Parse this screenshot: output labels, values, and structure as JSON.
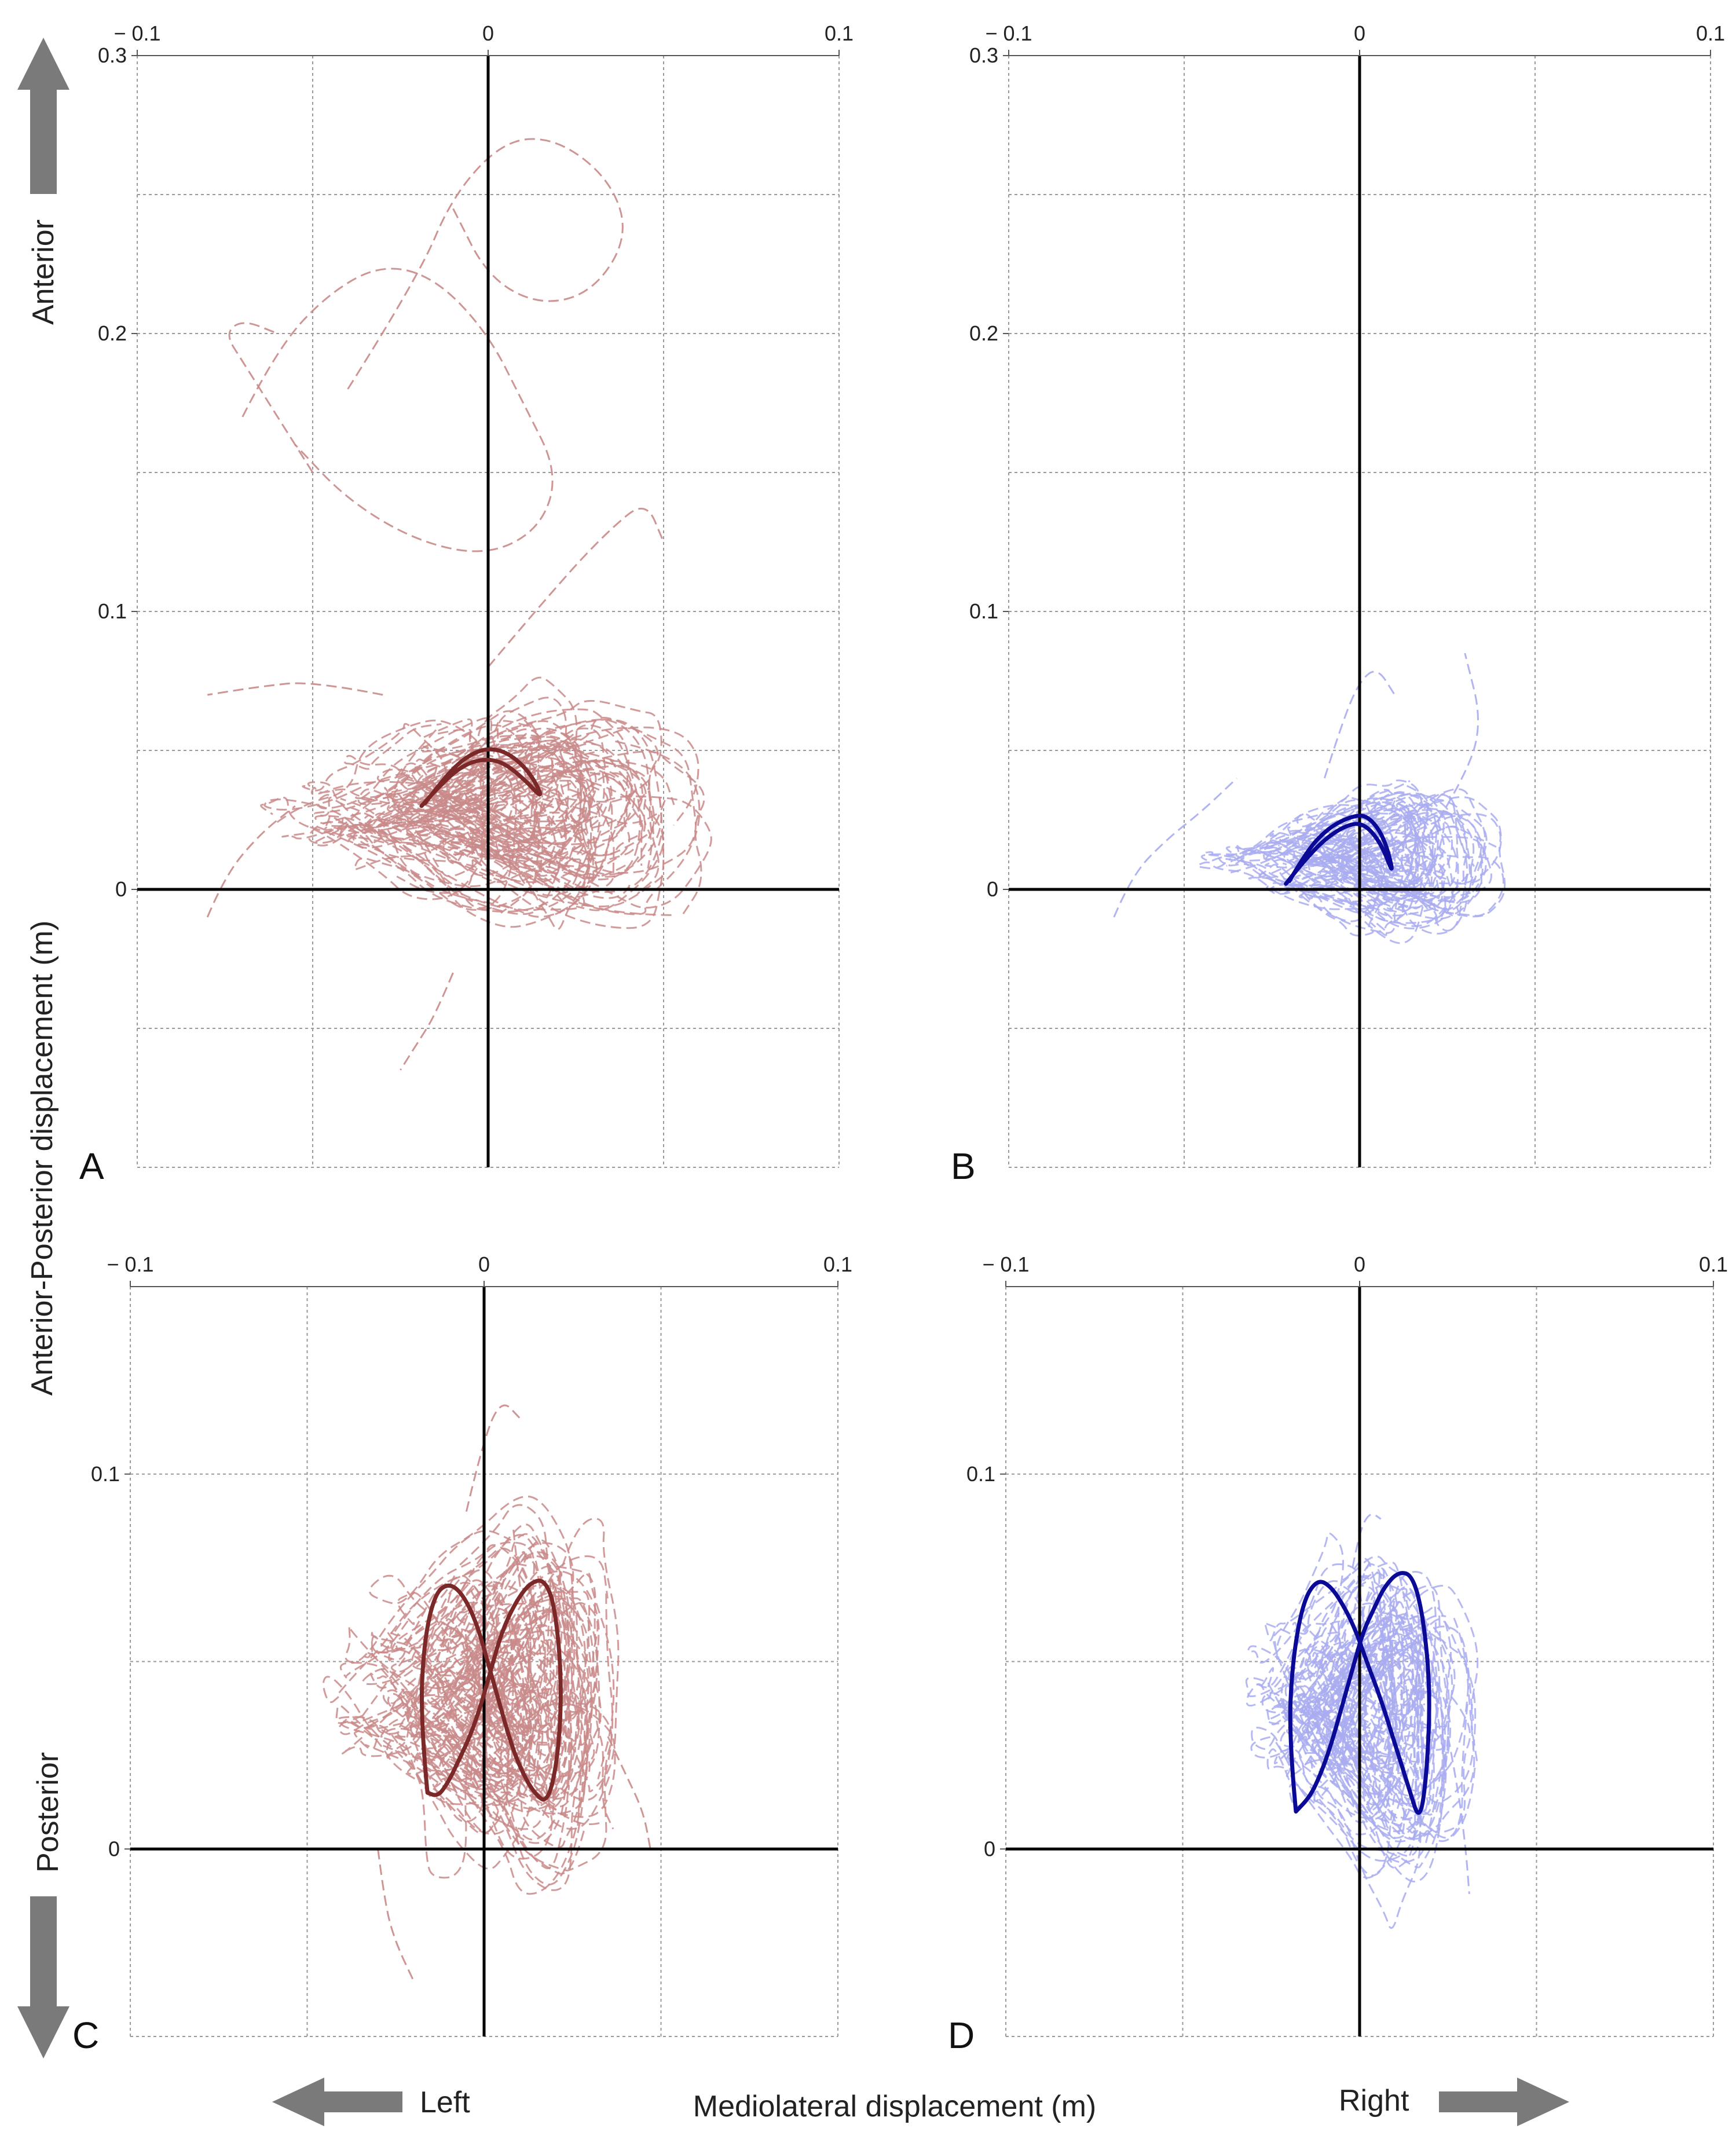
{
  "figure": {
    "ylabel": "Anterior-Posterior displacement (m)",
    "xlabel": "Mediolateral displacement (m)",
    "dir_anterior": "Anterior",
    "dir_posterior": "Posterior",
    "dir_left": "Left",
    "dir_right": "Right",
    "colors": {
      "red_trials": "#c98a8a",
      "red_mean": "#7a2828",
      "blue_trials": "#a9acf0",
      "blue_mean": "#0a0a96"
    }
  },
  "chart_data": [
    {
      "panel": "A",
      "type": "line",
      "theme": "red",
      "xlim": [
        -0.1,
        0.1
      ],
      "ylim": [
        -0.1,
        0.3
      ],
      "xticks": [
        -0.1,
        0,
        0.1
      ],
      "xtick_labels": [
        "− 0.1",
        "0",
        "0.1"
      ],
      "yticks": [
        0,
        0.1,
        0.2,
        0.3
      ],
      "ytick_labels": [
        "0",
        "0.1",
        "0.2",
        "0.3"
      ],
      "xgrid": [
        -0.1,
        -0.05,
        0,
        0.05,
        0.1
      ],
      "ygrid": [
        -0.1,
        -0.05,
        0,
        0.05,
        0.1,
        0.15,
        0.2,
        0.25,
        0.3
      ],
      "trials": {
        "count": 70,
        "x_spread": 0.045,
        "y_mean": 0.028,
        "y_spread": 0.03
      },
      "outlier_paths": [
        {
          "name": "loop-1",
          "x": [
            -0.07,
            -0.06,
            -0.045,
            -0.03,
            -0.015,
            0.0,
            0.01,
            0.02,
            0.015,
            0.0,
            -0.02,
            -0.04,
            -0.055
          ],
          "y": [
            0.17,
            0.195,
            0.215,
            0.225,
            0.22,
            0.2,
            0.175,
            0.15,
            0.13,
            0.12,
            0.125,
            0.14,
            0.16
          ]
        },
        {
          "name": "loop-2",
          "x": [
            -0.04,
            -0.02,
            -0.01,
            0.005,
            0.02,
            0.035,
            0.04,
            0.03,
            0.015,
            0.0,
            -0.01
          ],
          "y": [
            0.18,
            0.22,
            0.25,
            0.27,
            0.27,
            0.255,
            0.235,
            0.215,
            0.21,
            0.22,
            0.245
          ]
        },
        {
          "name": "loop-3",
          "x": [
            -0.05,
            -0.06,
            -0.07,
            -0.075,
            -0.07,
            -0.06
          ],
          "y": [
            0.15,
            0.17,
            0.19,
            0.2,
            0.205,
            0.2
          ]
        },
        {
          "name": "tail-left",
          "x": [
            -0.03,
            -0.05,
            -0.065,
            -0.08
          ],
          "y": [
            0.07,
            0.075,
            0.073,
            0.07
          ]
        },
        {
          "name": "tail-low",
          "x": [
            -0.08,
            -0.075,
            -0.065,
            -0.055
          ],
          "y": [
            -0.01,
            0.005,
            0.02,
            0.03
          ]
        },
        {
          "name": "tail-down",
          "x": [
            -0.01,
            -0.015,
            -0.02,
            -0.025
          ],
          "y": [
            -0.03,
            -0.045,
            -0.055,
            -0.065
          ]
        },
        {
          "name": "tail-mid",
          "x": [
            0.0,
            0.02,
            0.035,
            0.045,
            0.05
          ],
          "y": [
            0.08,
            0.11,
            0.13,
            0.14,
            0.125
          ]
        }
      ],
      "mean_path": {
        "x": [
          -0.018,
          -0.012,
          -0.006,
          0.0,
          0.006,
          0.012,
          0.016,
          0.01,
          0.004,
          -0.002,
          -0.008,
          -0.014,
          -0.019
        ],
        "y": [
          0.031,
          0.041,
          0.048,
          0.051,
          0.049,
          0.042,
          0.032,
          0.04,
          0.046,
          0.047,
          0.044,
          0.037,
          0.03
        ]
      }
    },
    {
      "panel": "B",
      "type": "line",
      "theme": "blue",
      "xlim": [
        -0.1,
        0.1
      ],
      "ylim": [
        -0.1,
        0.3
      ],
      "xticks": [
        -0.1,
        0,
        0.1
      ],
      "xtick_labels": [
        "− 0.1",
        "0",
        "0.1"
      ],
      "yticks": [
        0,
        0.1,
        0.2,
        0.3
      ],
      "ytick_labels": [
        "0",
        "0.1",
        "0.2",
        "0.3"
      ],
      "xgrid": [
        -0.1,
        -0.05,
        0,
        0.05,
        0.1
      ],
      "ygrid": [
        -0.1,
        -0.05,
        0,
        0.05,
        0.1,
        0.15,
        0.2,
        0.25,
        0.3
      ],
      "trials": {
        "count": 60,
        "x_spread": 0.03,
        "y_mean": 0.012,
        "y_spread": 0.022
      },
      "outlier_paths": [
        {
          "name": "tail-left",
          "x": [
            -0.07,
            -0.065,
            -0.055,
            -0.045,
            -0.035
          ],
          "y": [
            -0.01,
            0.005,
            0.018,
            0.028,
            0.04
          ]
        },
        {
          "name": "tail-up",
          "x": [
            -0.01,
            -0.005,
            0.0,
            0.005,
            0.01
          ],
          "y": [
            0.04,
            0.06,
            0.075,
            0.08,
            0.07
          ]
        },
        {
          "name": "tail-right",
          "x": [
            0.02,
            0.03,
            0.035,
            0.03
          ],
          "y": [
            0.02,
            0.04,
            0.06,
            0.085
          ]
        }
      ],
      "mean_path": {
        "x": [
          -0.02,
          -0.015,
          -0.009,
          -0.003,
          0.002,
          0.007,
          0.01,
          0.006,
          0.001,
          -0.004,
          -0.01,
          -0.016,
          -0.021
        ],
        "y": [
          0.003,
          0.014,
          0.022,
          0.026,
          0.027,
          0.019,
          0.004,
          0.017,
          0.024,
          0.023,
          0.018,
          0.01,
          0.002
        ]
      }
    },
    {
      "panel": "C",
      "type": "line",
      "theme": "red",
      "xlim": [
        -0.1,
        0.1
      ],
      "ylim": [
        -0.05,
        0.15
      ],
      "xticks": [
        -0.1,
        0,
        0.1
      ],
      "xtick_labels": [
        "− 0.1",
        "0",
        "0.1"
      ],
      "yticks": [
        0,
        0.1
      ],
      "ytick_labels": [
        "0",
        "0.1"
      ],
      "xgrid": [
        -0.1,
        -0.05,
        0,
        0.05,
        0.1
      ],
      "ygrid": [
        -0.05,
        0,
        0.05,
        0.1,
        0.15
      ],
      "trials": {
        "count": 80,
        "x_spread": 0.03,
        "y_mean": 0.04,
        "y_spread": 0.035
      },
      "outlier_paths": [
        {
          "name": "tail-low-left",
          "x": [
            -0.03,
            -0.028,
            -0.025,
            -0.02
          ],
          "y": [
            0.0,
            -0.015,
            -0.025,
            -0.035
          ]
        },
        {
          "name": "tail-top",
          "x": [
            -0.005,
            0.0,
            0.005,
            0.01
          ],
          "y": [
            0.09,
            0.11,
            0.12,
            0.115
          ]
        },
        {
          "name": "tail-right",
          "x": [
            0.035,
            0.04,
            0.045,
            0.047
          ],
          "y": [
            0.03,
            0.02,
            0.01,
            0.0
          ]
        }
      ],
      "mean_path": {
        "x": [
          -0.016,
          -0.018,
          -0.017,
          -0.014,
          -0.01,
          -0.006,
          -0.002,
          0.001,
          0.004,
          0.007,
          0.01,
          0.014,
          0.018,
          0.021,
          0.022,
          0.02,
          0.017,
          0.013,
          0.009,
          0.005,
          0.002,
          -0.001,
          -0.004,
          -0.007,
          -0.01,
          -0.013,
          -0.016
        ],
        "y": [
          0.015,
          0.035,
          0.055,
          0.068,
          0.071,
          0.068,
          0.06,
          0.05,
          0.04,
          0.03,
          0.022,
          0.015,
          0.012,
          0.025,
          0.045,
          0.065,
          0.072,
          0.071,
          0.066,
          0.058,
          0.048,
          0.038,
          0.03,
          0.024,
          0.018,
          0.014,
          0.015
        ]
      }
    },
    {
      "panel": "D",
      "type": "line",
      "theme": "blue",
      "xlim": [
        -0.1,
        0.1
      ],
      "ylim": [
        -0.05,
        0.15
      ],
      "xticks": [
        -0.1,
        0,
        0.1
      ],
      "xtick_labels": [
        "− 0.1",
        "0",
        "0.1"
      ],
      "yticks": [
        0,
        0.1
      ],
      "ytick_labels": [
        "0",
        "0.1"
      ],
      "xgrid": [
        -0.1,
        -0.05,
        0,
        0.05,
        0.1
      ],
      "ygrid": [
        -0.05,
        0,
        0.05,
        0.1,
        0.15
      ],
      "trials": {
        "count": 70,
        "x_spread": 0.026,
        "y_mean": 0.04,
        "y_spread": 0.033
      },
      "outlier_paths": [
        {
          "name": "tail-right",
          "x": [
            0.025,
            0.028,
            0.03,
            0.031
          ],
          "y": [
            0.03,
            0.015,
            0.0,
            -0.012
          ]
        },
        {
          "name": "tail-top",
          "x": [
            -0.002,
            0.0,
            0.003,
            0.006
          ],
          "y": [
            0.075,
            0.085,
            0.09,
            0.088
          ]
        }
      ],
      "mean_path": {
        "x": [
          -0.018,
          -0.02,
          -0.019,
          -0.016,
          -0.012,
          -0.008,
          -0.004,
          -0.001,
          0.002,
          0.006,
          0.01,
          0.014,
          0.017,
          0.019,
          0.02,
          0.018,
          0.015,
          0.011,
          0.007,
          0.004,
          0.001,
          -0.002,
          -0.005,
          -0.008,
          -0.011,
          -0.014,
          -0.018
        ],
        "y": [
          0.01,
          0.03,
          0.05,
          0.066,
          0.072,
          0.07,
          0.064,
          0.058,
          0.05,
          0.04,
          0.028,
          0.016,
          0.007,
          0.02,
          0.042,
          0.062,
          0.073,
          0.074,
          0.07,
          0.064,
          0.058,
          0.048,
          0.038,
          0.028,
          0.02,
          0.014,
          0.01
        ]
      }
    }
  ]
}
